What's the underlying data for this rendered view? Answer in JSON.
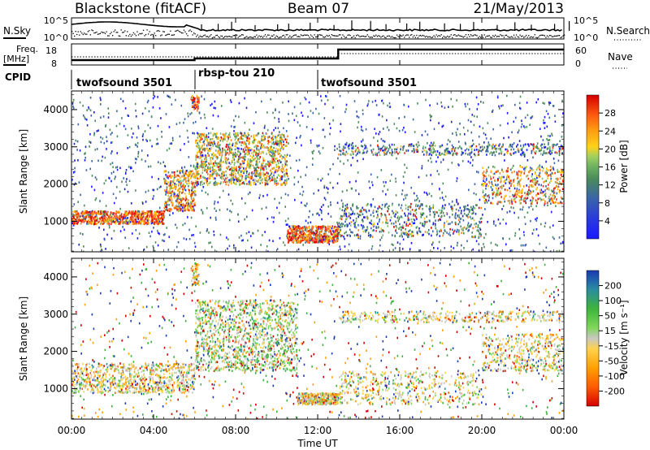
{
  "header": {
    "station": "Blackstone (fitACF)",
    "beam": "Beam 07",
    "date": "21/May/2013"
  },
  "top_panels": {
    "nsky_label": "N.Sky",
    "nsearch_label": "N.Search",
    "nsky_ticks": [
      "10^5",
      "10^0"
    ],
    "nsearch_ticks": [
      "10^5",
      "10^0"
    ],
    "freq_label_1": "Freq.",
    "freq_label_2": "[MHz]",
    "freq_ticks": [
      "18",
      "8"
    ],
    "nave_label": "Nave",
    "nave_ticks": [
      "60",
      "0"
    ],
    "cpid_label": "CPID",
    "cpid_segments": [
      {
        "name": "twofsound 3501",
        "start_hour": 0,
        "end_hour": 6
      },
      {
        "name": "rbsp-tou 210",
        "start_hour": 6,
        "end_hour": 12
      },
      {
        "name": "twofsound 3501",
        "start_hour": 12,
        "end_hour": 24
      }
    ]
  },
  "power_panel": {
    "ylabel": "Slant Range [km]",
    "yticks": [
      1000,
      2000,
      3000,
      4000
    ],
    "colorbar_label": "Power [dB]",
    "colorbar_ticks": [
      4,
      8,
      12,
      16,
      20,
      24,
      28
    ]
  },
  "velocity_panel": {
    "ylabel": "Slant Range [km]",
    "yticks": [
      1000,
      2000,
      3000,
      4000
    ],
    "colorbar_label": "Velocity [m s⁻¹]",
    "colorbar_ticks": [
      200,
      100,
      50,
      15,
      -15,
      -50,
      -100,
      -200
    ]
  },
  "xaxis": {
    "label": "Time UT",
    "ticks": [
      "00:00",
      "04:00",
      "08:00",
      "12:00",
      "16:00",
      "20:00",
      "00:00"
    ]
  },
  "chart_data": [
    {
      "type": "heatmap",
      "title": "Power",
      "xlabel": "Time UT",
      "ylabel": "Slant Range [km]",
      "xlim": [
        0,
        24
      ],
      "ylim": [
        180,
        4500
      ],
      "colorbar": {
        "label": "Power [dB]",
        "range": [
          0,
          32
        ]
      },
      "colors": [
        "#1a1aff",
        "#3a64a8",
        "#4c8c5a",
        "#7dbf6a",
        "#ffbf00",
        "#ff7f1a",
        "#ff2a10",
        "#d40000"
      ],
      "features": [
        {
          "hours": [
            0,
            4.5
          ],
          "range_km": [
            950,
            1300
          ],
          "power_db": 28
        },
        {
          "hours": [
            4.5,
            6.0
          ],
          "range_km": [
            1300,
            2400
          ],
          "power_db": 24
        },
        {
          "hours": [
            6.0,
            10.5
          ],
          "range_km": [
            2000,
            3400
          ],
          "power_db": 24
        },
        {
          "hours": [
            10.5,
            13.0
          ],
          "range_km": [
            500,
            900
          ],
          "power_db": 28
        },
        {
          "hours": [
            13.0,
            24.0
          ],
          "range_km": [
            1500,
            3000
          ],
          "power_db": 20
        }
      ]
    },
    {
      "type": "heatmap",
      "title": "Velocity",
      "xlabel": "Time UT",
      "ylabel": "Slant Range [km]",
      "xlim": [
        0,
        24
      ],
      "ylim": [
        180,
        4500
      ],
      "colorbar": {
        "label": "Velocity [m s⁻¹]",
        "range": [
          -250,
          250
        ]
      },
      "colors": [
        "#d40000",
        "#ff5a00",
        "#ff9f00",
        "#ffd24a",
        "#c8c8c0",
        "#7fd65a",
        "#3cb43c",
        "#2a8ca0",
        "#1a3ab4"
      ],
      "features": [
        {
          "hours": [
            0,
            6.0
          ],
          "range_km": [
            900,
            1700
          ],
          "velocity_ms": 0
        },
        {
          "hours": [
            6.0,
            11.0
          ],
          "range_km": [
            1500,
            3400
          ],
          "velocity_ms": 40
        },
        {
          "hours": [
            11.0,
            13.0
          ],
          "range_km": [
            600,
            900
          ],
          "velocity_ms": 0
        },
        {
          "hours": [
            13.0,
            24.0
          ],
          "range_km": [
            600,
            3000
          ],
          "velocity_ms": -10
        }
      ]
    }
  ]
}
